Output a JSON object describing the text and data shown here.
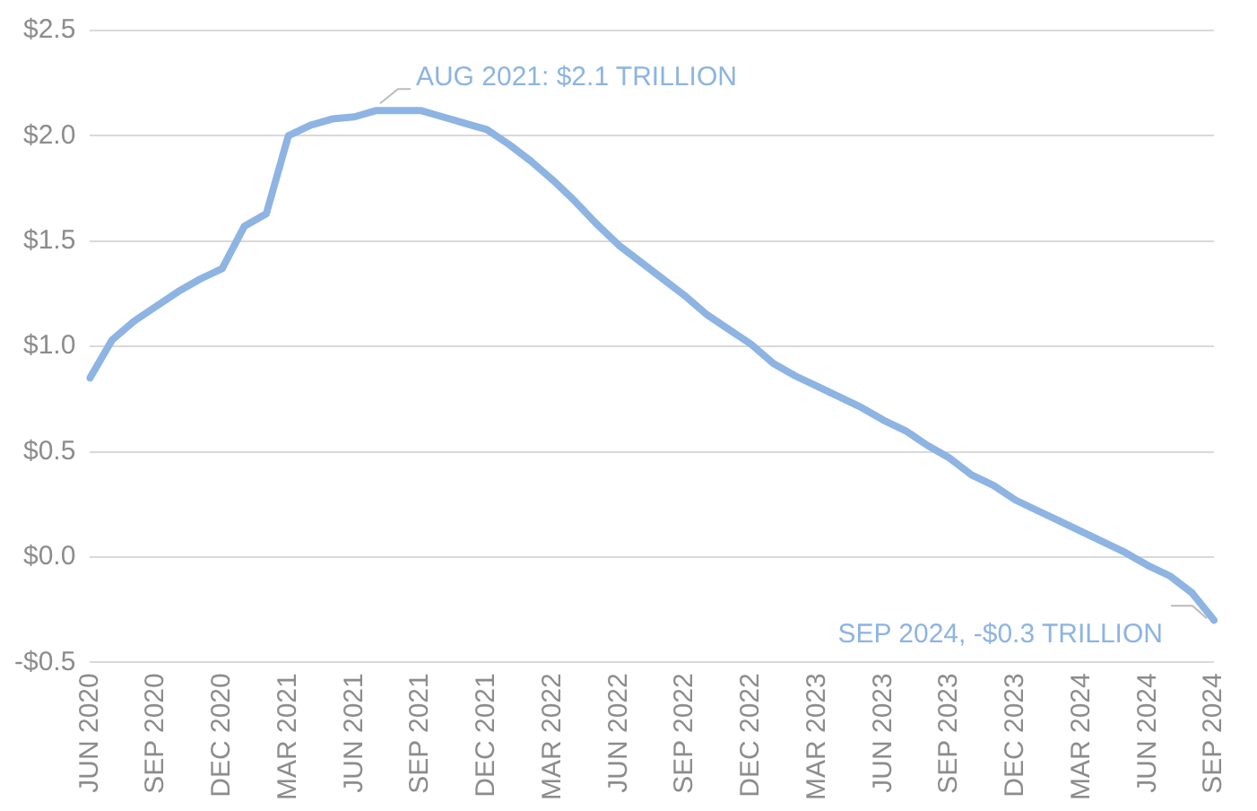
{
  "chart_data": {
    "type": "line",
    "categories": [
      "JUN 2020",
      null,
      null,
      "SEP 2020",
      null,
      null,
      "DEC 2020",
      null,
      null,
      "MAR 2021",
      null,
      null,
      "JUN 2021",
      null,
      null,
      "SEP 2021",
      null,
      null,
      "DEC 2021",
      null,
      null,
      "MAR 2022",
      null,
      null,
      "JUN 2022",
      null,
      null,
      "SEP 2022",
      null,
      null,
      "DEC 2022",
      null,
      null,
      "MAR 2023",
      null,
      null,
      "JUN 2023",
      null,
      null,
      "SEP 2023",
      null,
      null,
      "DEC 2023",
      null,
      null,
      "MAR 2024",
      null,
      null,
      "JUN 2024",
      null,
      null,
      "SEP 2024"
    ],
    "series": [
      {
        "color": "#8db4e2",
        "values": [
          0.85,
          1.03,
          1.12,
          1.19,
          1.26,
          1.32,
          1.37,
          1.57,
          1.63,
          2.0,
          2.05,
          2.08,
          2.09,
          2.12,
          2.12,
          2.12,
          2.09,
          2.06,
          2.03,
          1.96,
          1.88,
          1.79,
          1.69,
          1.58,
          1.48,
          1.4,
          1.32,
          1.24,
          1.15,
          1.08,
          1.01,
          0.92,
          0.86,
          0.81,
          0.76,
          0.71,
          0.65,
          0.6,
          0.53,
          0.47,
          0.39,
          0.34,
          0.27,
          0.22,
          0.17,
          0.12,
          0.07,
          0.02,
          -0.04,
          -0.09,
          -0.17,
          -0.3
        ]
      }
    ],
    "ylim": [
      -0.5,
      2.5
    ],
    "yticks": [
      {
        "value": -0.5,
        "label": "-$0.5"
      },
      {
        "value": 0,
        "label": "$0.0"
      },
      {
        "value": 0.5,
        "label": "$0.5"
      },
      {
        "value": 1,
        "label": "$1.0"
      },
      {
        "value": 1.5,
        "label": "$1.5"
      },
      {
        "value": 2,
        "label": "$2.0"
      },
      {
        "value": 2.5,
        "label": "$2.5"
      }
    ],
    "grid": "y",
    "legend": false,
    "marker": "none",
    "line_style": "solid",
    "annotations": [
      "AUG 2021: $2.1 TRILLION",
      {
        "text": "SEP 2024, -$0.3 TRILLION",
        "x": "SEP 2024",
        "y": -0.3
      }
    ]
  }
}
